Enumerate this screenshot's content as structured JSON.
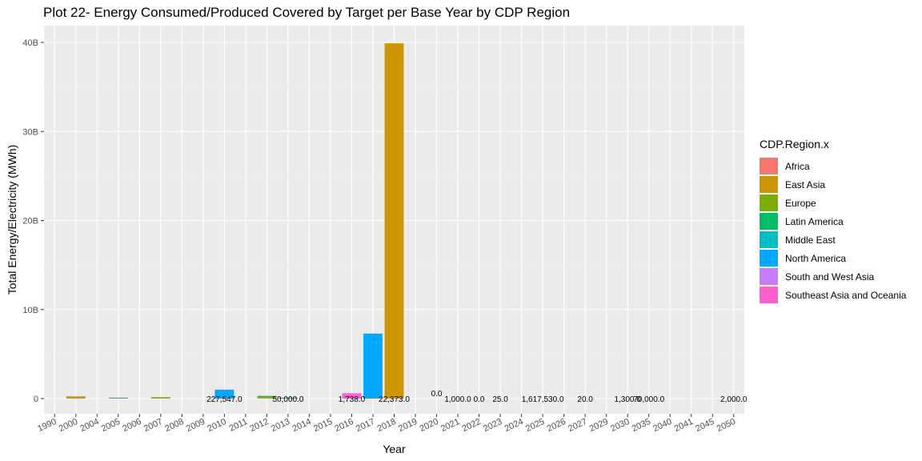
{
  "chart_data": {
    "type": "bar",
    "title": "Plot 22- Energy Consumed/Produced Covered by Target per Base Year by CDP Region",
    "xlabel": "Year",
    "ylabel": "Total Energy/Electricity (MWh)",
    "ylim": [
      0,
      41500000000
    ],
    "y_ticks": [
      {
        "value": 0,
        "label": "0"
      },
      {
        "value": 10000000000,
        "label": "10B"
      },
      {
        "value": 20000000000,
        "label": "20B"
      },
      {
        "value": 30000000000,
        "label": "30B"
      },
      {
        "value": 40000000000,
        "label": "40B"
      }
    ],
    "categories": [
      "1990",
      "2000",
      "2004",
      "2005",
      "2006",
      "2007",
      "2008",
      "2009",
      "2010",
      "2011",
      "2012",
      "2013",
      "2014",
      "2015",
      "2016",
      "2017",
      "2018",
      "2019",
      "2020",
      "2021",
      "2022",
      "2023",
      "2024",
      "2025",
      "2026",
      "2027",
      "2029",
      "2030",
      "2035",
      "2040",
      "2041",
      "2045",
      "2050"
    ],
    "legend": {
      "title": "CDP.Region.x",
      "position": "right"
    },
    "grid": true,
    "series": [
      {
        "name": "Africa",
        "color": "#F8766D",
        "points": []
      },
      {
        "name": "East Asia",
        "color": "#CD9600",
        "points": [
          {
            "x": "2000",
            "y": 250000000
          },
          {
            "x": "2007",
            "y": 50000000
          },
          {
            "x": "2012",
            "y": 100000000
          },
          {
            "x": "2018",
            "y": 39900000000
          }
        ]
      },
      {
        "name": "Europe",
        "color": "#7CAE00",
        "points": [
          {
            "x": "2007",
            "y": 30000000
          },
          {
            "x": "2012",
            "y": 80000000
          }
        ]
      },
      {
        "name": "Latin America",
        "color": "#00BE67",
        "points": [
          {
            "x": "2012",
            "y": 120000000
          }
        ]
      },
      {
        "name": "Middle East",
        "color": "#00BFC4",
        "points": [
          {
            "x": "2005",
            "y": 40000000
          },
          {
            "x": "2013",
            "y": 40000000
          }
        ]
      },
      {
        "name": "North America",
        "color": "#00A9FF",
        "points": [
          {
            "x": "2010",
            "y": 1000000000
          },
          {
            "x": "2017",
            "y": 7300000000
          }
        ]
      },
      {
        "name": "South and West Asia",
        "color": "#C77CFF",
        "points": []
      },
      {
        "name": "Southeast Asia and Oceania",
        "color": "#FF61CC",
        "points": [
          {
            "x": "2016",
            "y": 600000000
          }
        ]
      }
    ],
    "annotations": [
      {
        "x": "2010",
        "text": "227,547.0"
      },
      {
        "x": "2013",
        "text": "50,000.0"
      },
      {
        "x": "2016",
        "text": "1,738.0"
      },
      {
        "x": "2018",
        "text": "22,373.0"
      },
      {
        "x": "2020",
        "text": "0.0",
        "raised": true
      },
      {
        "x": "2021",
        "text": "1,000.0"
      },
      {
        "x": "2022",
        "text": "0.0"
      },
      {
        "x": "2023",
        "text": "25.0"
      },
      {
        "x": "2025",
        "text": "1,617,530.0"
      },
      {
        "x": "2027",
        "text": "20.0"
      },
      {
        "x": "2030",
        "text": "1,300.0"
      },
      {
        "x": "2035",
        "text": "70,000.0"
      },
      {
        "x": "2050",
        "text": "2,000.0"
      }
    ]
  }
}
